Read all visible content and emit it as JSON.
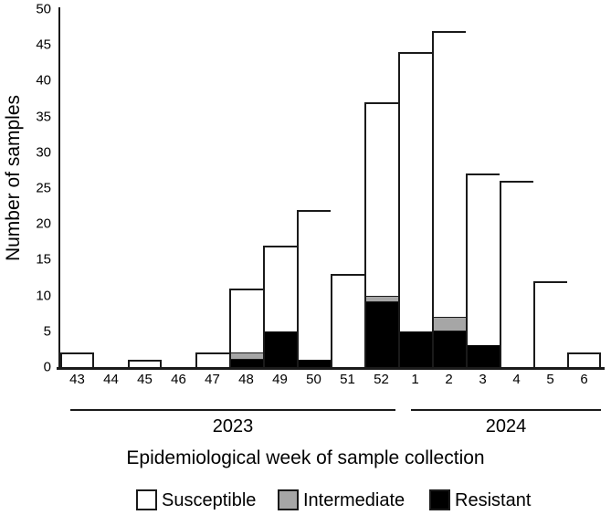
{
  "figure": {
    "stroke_color": "#1a1a1a",
    "background": "#ffffff"
  },
  "chart_data": {
    "type": "bar",
    "stacked": true,
    "title": "",
    "xlabel": "Epidemiological week of sample collection",
    "ylabel": "Number of samples",
    "ylim": [
      0,
      50
    ],
    "yticks": [
      0,
      5,
      10,
      15,
      20,
      25,
      30,
      35,
      40,
      45,
      50
    ],
    "grid": false,
    "legend_position": "bottom",
    "categories": [
      "43",
      "44",
      "45",
      "46",
      "47",
      "48",
      "49",
      "50",
      "51",
      "52",
      "1",
      "2",
      "3",
      "4",
      "5",
      "6"
    ],
    "year_groups": [
      {
        "label": "2023",
        "start_week": "43",
        "end_week": "52"
      },
      {
        "label": "2024",
        "start_week": "1",
        "end_week": "6"
      }
    ],
    "stack_order_bottom_to_top": [
      "Resistant",
      "Intermediate",
      "Susceptible"
    ],
    "series": [
      {
        "name": "Susceptible",
        "color": "#ffffff",
        "values": [
          2,
          0,
          1,
          0,
          2,
          9,
          12,
          21,
          13,
          27,
          39,
          40,
          24,
          26,
          12,
          2
        ]
      },
      {
        "name": "Intermediate",
        "color": "#a6a6a6",
        "values": [
          0,
          0,
          0,
          0,
          0,
          1,
          0,
          0,
          0,
          1,
          0,
          2,
          0,
          0,
          0,
          0
        ]
      },
      {
        "name": "Resistant",
        "color": "#000000",
        "values": [
          0,
          0,
          0,
          0,
          0,
          1,
          5,
          1,
          0,
          9,
          5,
          5,
          3,
          0,
          0,
          0
        ]
      }
    ],
    "totals": [
      2,
      0,
      1,
      0,
      2,
      11,
      17,
      22,
      13,
      37,
      44,
      47,
      27,
      26,
      12,
      2
    ]
  }
}
